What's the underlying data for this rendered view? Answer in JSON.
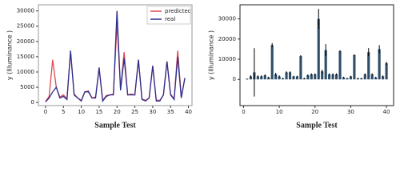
{
  "chart_data": [
    {
      "type": "line",
      "x_label": "Sample Test",
      "y_label": "y (Illuminance )",
      "x": [
        0,
        1,
        2,
        3,
        4,
        5,
        6,
        7,
        8,
        9,
        10,
        11,
        12,
        13,
        14,
        15,
        16,
        17,
        18,
        19,
        20,
        21,
        22,
        23,
        24,
        25,
        26,
        27,
        28,
        29,
        30,
        31,
        32,
        33,
        34,
        35,
        36,
        37,
        38,
        39
      ],
      "series": [
        {
          "name": "predicted",
          "color": "#e0474c",
          "values": [
            300,
            2000,
            14000,
            5000,
            1800,
            2500,
            1200,
            16500,
            2800,
            1500,
            700,
            3500,
            3800,
            1500,
            1800,
            11000,
            700,
            2300,
            2500,
            2800,
            26000,
            4500,
            16500,
            2500,
            2800,
            2500,
            14000,
            1200,
            700,
            1500,
            12000,
            800,
            700,
            2500,
            13500,
            2800,
            1200,
            17000,
            1800,
            8000
          ]
        },
        {
          "name": "real",
          "color": "#2b2f8f",
          "values": [
            200,
            1500,
            3500,
            5000,
            1500,
            2000,
            1000,
            17000,
            2500,
            1500,
            500,
            3500,
            3500,
            1500,
            1500,
            11500,
            500,
            2000,
            2500,
            2500,
            30000,
            4000,
            14500,
            2500,
            2500,
            2500,
            14000,
            1000,
            500,
            1500,
            12000,
            500,
            500,
            2500,
            13500,
            2500,
            1000,
            15000,
            1500,
            8000
          ]
        }
      ],
      "xlim": [
        -2,
        41
      ],
      "xticks": [
        0,
        5,
        10,
        15,
        20,
        25,
        30,
        35,
        40
      ],
      "ylim": [
        -1000,
        32000
      ],
      "yticks": [
        0,
        5000,
        10000,
        15000,
        20000,
        25000,
        30000
      ],
      "legend": "upper right"
    },
    {
      "type": "bar",
      "x_label": "Sample Test",
      "y_label": "y (Illuminance )",
      "color": "#2d4d69",
      "x": [
        1,
        2,
        3,
        4,
        5,
        6,
        7,
        8,
        9,
        10,
        11,
        12,
        13,
        14,
        15,
        16,
        17,
        18,
        19,
        20,
        21,
        22,
        23,
        24,
        25,
        26,
        27,
        28,
        29,
        30,
        31,
        32,
        33,
        34,
        35,
        36,
        37,
        38,
        39,
        40
      ],
      "values": [
        200,
        1500,
        3500,
        1500,
        1500,
        2000,
        1000,
        17000,
        2500,
        1500,
        500,
        3500,
        3500,
        1500,
        1500,
        11500,
        500,
        2000,
        2500,
        2500,
        30000,
        4000,
        14500,
        2500,
        2500,
        2500,
        14000,
        1000,
        500,
        1500,
        12000,
        500,
        500,
        2500,
        13500,
        2500,
        1000,
        15000,
        1500,
        8000
      ],
      "errors": [
        300,
        500,
        12000,
        500,
        500,
        500,
        300,
        1000,
        800,
        500,
        300,
        500,
        500,
        300,
        300,
        500,
        300,
        500,
        500,
        500,
        5000,
        800,
        3000,
        500,
        500,
        500,
        500,
        300,
        300,
        300,
        500,
        300,
        300,
        500,
        2000,
        500,
        300,
        2000,
        500,
        800
      ],
      "xlim": [
        -1,
        42
      ],
      "xticks": [
        0,
        10,
        20,
        30,
        40
      ],
      "ylim": [
        -13000,
        37000
      ],
      "yticks": [
        0,
        10000,
        20000,
        30000
      ]
    }
  ]
}
